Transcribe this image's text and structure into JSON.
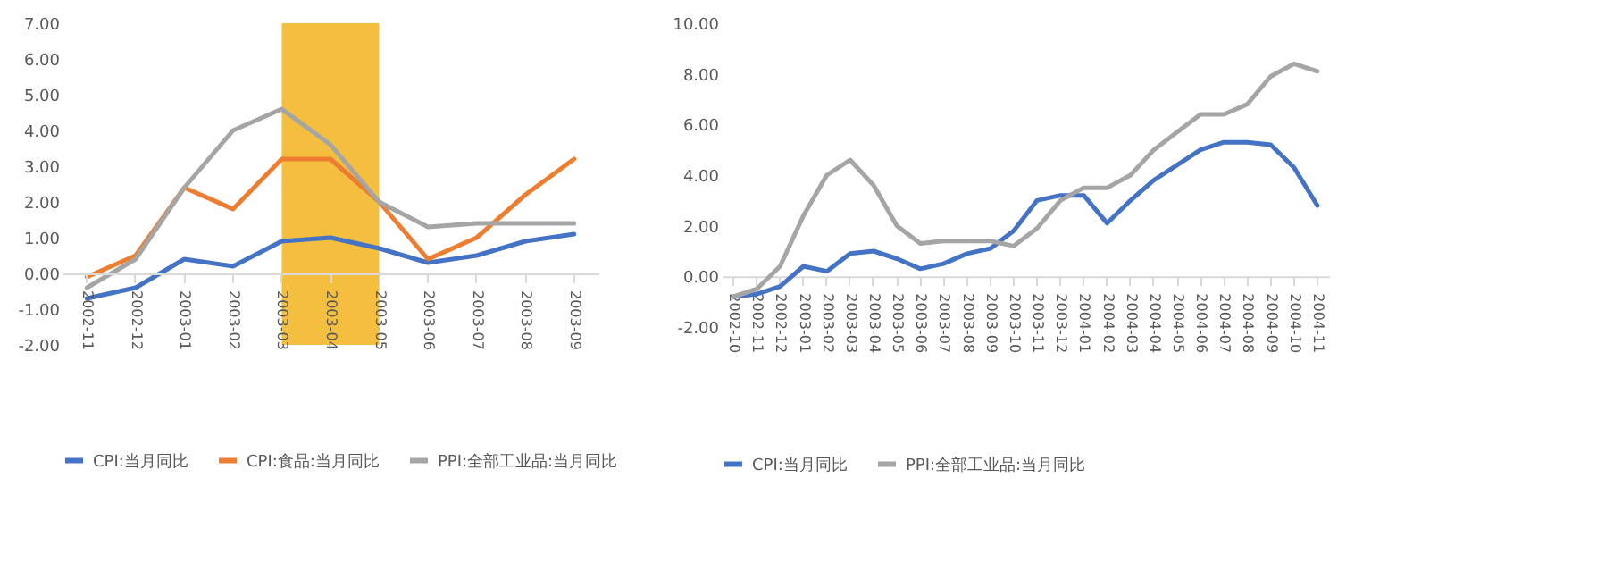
{
  "chart_data": [
    {
      "type": "line",
      "categories": [
        "2002-11",
        "2002-12",
        "2003-01",
        "2003-02",
        "2003-03",
        "2003-04",
        "2003-05",
        "2003-06",
        "2003-07",
        "2003-08",
        "2003-09"
      ],
      "series": [
        {
          "name": "CPI:当月同比",
          "color": "#4472c4",
          "values": [
            -0.7,
            -0.4,
            0.4,
            0.2,
            0.9,
            1.0,
            0.7,
            0.3,
            0.5,
            0.9,
            1.1
          ]
        },
        {
          "name": "CPI:食品:当月同比",
          "color": "#ed7d31",
          "values": [
            -0.1,
            0.5,
            2.4,
            1.8,
            3.2,
            3.2,
            2.0,
            0.4,
            1.0,
            2.2,
            3.2
          ]
        },
        {
          "name": "PPI:全部工业品:当月同比",
          "color": "#a5a5a5",
          "values": [
            -0.4,
            0.4,
            2.4,
            4.0,
            4.6,
            3.6,
            2.0,
            1.3,
            1.4,
            1.4,
            1.4
          ]
        }
      ],
      "ylim": [
        -2,
        7
      ],
      "yticks": [
        {
          "value": -2,
          "label": "-2.00"
        },
        {
          "value": -1,
          "label": "-1.00"
        },
        {
          "value": 0,
          "label": "0.00"
        },
        {
          "value": 1,
          "label": "1.00"
        },
        {
          "value": 2,
          "label": "2.00"
        },
        {
          "value": 3,
          "label": "3.00"
        },
        {
          "value": 4,
          "label": "4.00"
        },
        {
          "value": 5,
          "label": "5.00"
        },
        {
          "value": 6,
          "label": "6.00"
        },
        {
          "value": 7,
          "label": "7.00"
        }
      ],
      "bands": [
        {
          "axis": "x",
          "from": "2003-03",
          "to": "2003-05",
          "color": "#f4bf3f"
        }
      ],
      "grid": false,
      "legend": "bottom"
    },
    {
      "type": "line",
      "categories": [
        "2002-10",
        "2002-11",
        "2002-12",
        "2003-01",
        "2003-02",
        "2003-03",
        "2003-04",
        "2003-05",
        "2003-06",
        "2003-07",
        "2003-08",
        "2003-09",
        "2003-10",
        "2003-11",
        "2003-12",
        "2004-01",
        "2004-02",
        "2004-03",
        "2004-04",
        "2004-05",
        "2004-06",
        "2004-07",
        "2004-08",
        "2004-09",
        "2004-10",
        "2004-11"
      ],
      "series": [
        {
          "name": "CPI:当月同比",
          "color": "#4472c4",
          "values": [
            -0.8,
            -0.7,
            -0.4,
            0.4,
            0.2,
            0.9,
            1.0,
            0.7,
            0.3,
            0.5,
            0.9,
            1.1,
            1.8,
            3.0,
            3.2,
            3.2,
            2.1,
            3.0,
            3.8,
            4.4,
            5.0,
            5.3,
            5.3,
            5.2,
            4.3,
            2.8
          ]
        },
        {
          "name": "PPI:全部工业品:当月同比",
          "color": "#a5a5a5",
          "values": [
            -0.8,
            -0.5,
            0.4,
            2.4,
            4.0,
            4.6,
            3.6,
            2.0,
            1.3,
            1.4,
            1.4,
            1.4,
            1.2,
            1.9,
            3.0,
            3.5,
            3.5,
            4.0,
            5.0,
            5.7,
            6.4,
            6.4,
            6.8,
            7.9,
            8.4,
            8.1
          ]
        }
      ],
      "ylim": [
        -2,
        10
      ],
      "yticks": [
        {
          "value": -2,
          "label": "-2.00"
        },
        {
          "value": 0,
          "label": "0.00"
        },
        {
          "value": 2,
          "label": "2.00"
        },
        {
          "value": 4,
          "label": "4.00"
        },
        {
          "value": 6,
          "label": "6.00"
        },
        {
          "value": 8,
          "label": "8.00"
        },
        {
          "value": 10,
          "label": "10.00"
        }
      ],
      "grid": false,
      "legend": "bottom"
    }
  ]
}
